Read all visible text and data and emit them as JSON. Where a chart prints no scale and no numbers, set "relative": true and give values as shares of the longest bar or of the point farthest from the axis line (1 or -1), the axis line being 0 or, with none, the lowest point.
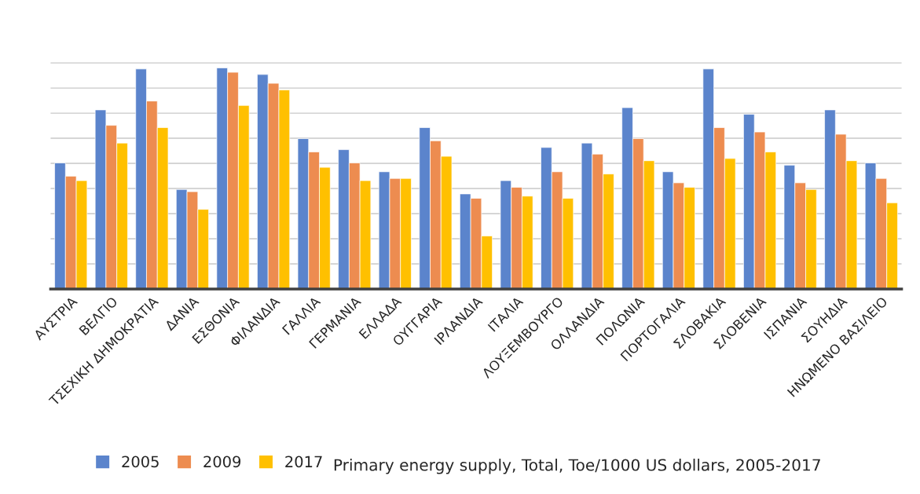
{
  "chart_data": {
    "type": "bar",
    "relative": true,
    "grid": "y",
    "legend": "bottom",
    "categories": [
      "ΑΥΣΤΡΙΑ",
      "ΒΕΛΓΙΟ",
      "ΤΣΕΧΙΚΗ ΔΗΜΟΚΡΑΤΙΑ",
      "ΔΑΝΙΑ",
      "ΕΣΘΟΝΙΑ",
      "ΦΙΛΑΝΔΙΑ",
      "ΓΑΛΛΙΑ",
      "ΓΕΡΜΑΝΙΑ",
      "ΕΛΛΑΔΑ",
      "ΟΥΓΓΑΡΙΑ",
      "ΙΡΛΑΝΔΙΑ",
      "ΙΤΑΛΙΑ",
      "ΛΟΥΞΕΜΒΟΥΡΓΟ",
      "ΟΛΛΑΝΔΙΑ",
      "ΠΟΛΩΝΙΑ",
      "ΠΟΡΤΟΓΑΛΙΑ",
      "ΣΛΟΒΑΚΙΑ",
      "ΣΛΟΒΕΝΙΑ",
      "ΙΣΠΑΝΙΑ",
      "ΣΟΥΗΔΙΑ",
      "ΗΝΩΜΕΝΟ ΒΑΣΙΛΕΙΟ"
    ],
    "series": [
      {
        "name": "2005",
        "color": "#5b84cc",
        "values": [
          0.57,
          0.81,
          0.995,
          0.45,
          1,
          0.97,
          0.68,
          0.63,
          0.53,
          0.73,
          0.43,
          0.49,
          0.64,
          0.66,
          0.82,
          0.53,
          0.995,
          0.79,
          0.56,
          0.81,
          0.57
        ]
      },
      {
        "name": "2009",
        "color": "#ed8c50",
        "values": [
          0.51,
          0.74,
          0.85,
          0.44,
          0.98,
          0.93,
          0.62,
          0.57,
          0.5,
          0.67,
          0.41,
          0.46,
          0.53,
          0.61,
          0.68,
          0.48,
          0.73,
          0.71,
          0.48,
          0.7,
          0.5
        ]
      },
      {
        "name": "2017",
        "color": "#ffc000",
        "values": [
          0.49,
          0.66,
          0.73,
          0.36,
          0.83,
          0.9,
          0.55,
          0.49,
          0.5,
          0.6,
          0.24,
          0.42,
          0.41,
          0.52,
          0.58,
          0.46,
          0.59,
          0.62,
          0.45,
          0.58,
          0.39
        ]
      }
    ],
    "annotations": [
      "Primary energy supply, Total, Toe/1000 US dollars, 2005-2017"
    ]
  }
}
